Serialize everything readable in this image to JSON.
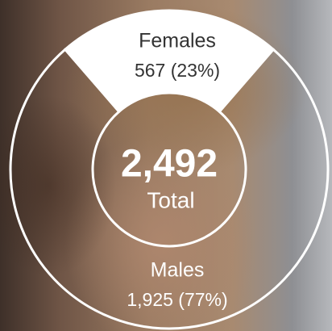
{
  "chart_data": {
    "type": "pie",
    "categories": [
      "Females",
      "Males"
    ],
    "values": [
      567,
      1925
    ],
    "value_labels": [
      "567 (23%)",
      "1,925 (77%)"
    ],
    "colors": [
      "#ffffff",
      "transparent"
    ],
    "center_value": "2,492",
    "center_label": "Total"
  }
}
